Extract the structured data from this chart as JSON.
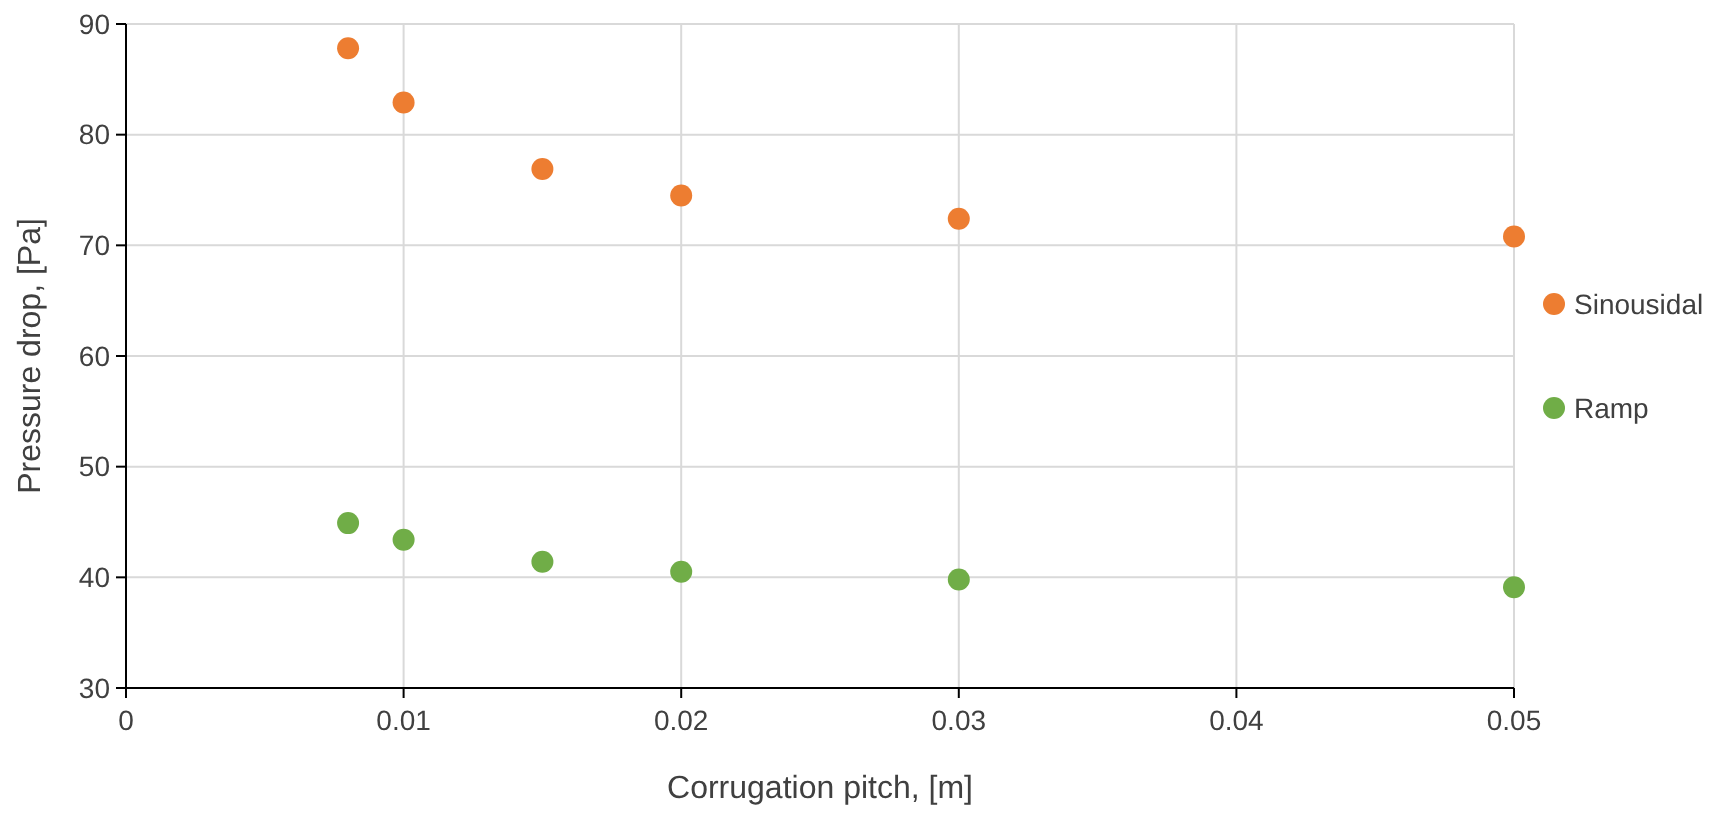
{
  "chart_data": {
    "type": "scatter",
    "xlabel": "Corrugation pitch, [m]",
    "ylabel": "Pressure drop, [Pa]",
    "x": [
      0.008,
      0.01,
      0.015,
      0.02,
      0.03,
      0.05
    ],
    "series": [
      {
        "name": "Sinousidal",
        "color": "#ed7d31",
        "values": [
          87.8,
          82.9,
          76.9,
          74.5,
          72.4,
          70.8
        ]
      },
      {
        "name": "Ramp",
        "color": "#70ad47",
        "values": [
          44.9,
          43.4,
          41.4,
          40.5,
          39.8,
          39.1
        ]
      }
    ],
    "xlim": [
      0,
      0.05
    ],
    "xticks": [
      0,
      0.01,
      0.02,
      0.03,
      0.04,
      0.05
    ],
    "ylim": [
      30,
      90
    ],
    "yticks": [
      30,
      40,
      50,
      60,
      70,
      80,
      90
    ],
    "grid": true,
    "legend": "right",
    "marker": "circle"
  }
}
